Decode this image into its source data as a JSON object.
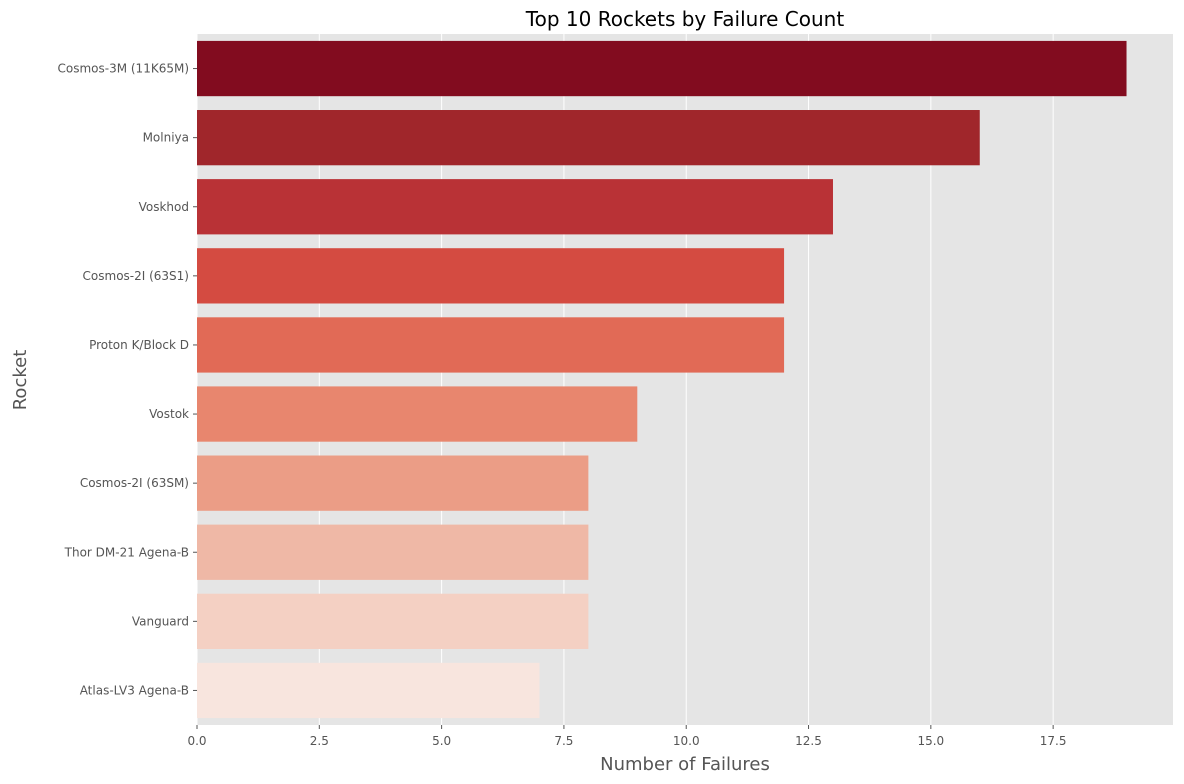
{
  "chart_data": {
    "type": "bar",
    "orientation": "horizontal",
    "title": "Top 10 Rockets by Failure Count",
    "xlabel": "Number of Failures",
    "ylabel": "Rocket",
    "categories": [
      "Cosmos-3M (11K65M)",
      "Molniya",
      "Voskhod",
      "Cosmos-2I (63S1)",
      "Proton K/Block D",
      "Vostok",
      "Cosmos-2I (63SM)",
      "Thor DM-21 Agena-B",
      "Vanguard",
      "Atlas-LV3 Agena-B"
    ],
    "values": [
      19,
      16,
      13,
      12,
      12,
      9,
      8,
      8,
      8,
      7
    ],
    "colors": [
      "#820c1f",
      "#a0262b",
      "#b93236",
      "#d44b41",
      "#e16a56",
      "#e8866e",
      "#eb9d86",
      "#efb8a6",
      "#f4d0c3",
      "#f8e5de"
    ],
    "xlim": [
      0,
      19.95
    ],
    "xticks": [
      0.0,
      2.5,
      5.0,
      7.5,
      10.0,
      12.5,
      15.0,
      17.5
    ],
    "xtick_labels": [
      "0.0",
      "2.5",
      "5.0",
      "7.5",
      "10.0",
      "12.5",
      "15.0",
      "17.5"
    ],
    "grid": true,
    "background": "#e5e5e5"
  }
}
